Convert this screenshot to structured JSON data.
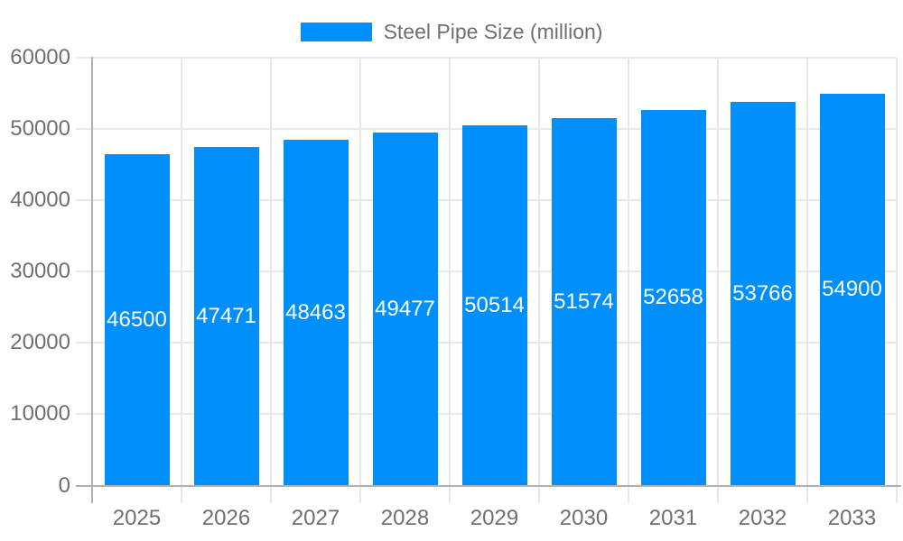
{
  "legend": {
    "label": "Steel Pipe Size (million)"
  },
  "colors": {
    "bar": "#008ffb",
    "bar_label": "#ffffff",
    "axis_text": "#6f6f6f",
    "legend_text": "#6f6f6f",
    "grid_line": "#e8e8e8",
    "axis_line": "#b0b0b0",
    "background": "#ffffff"
  },
  "chart_data": {
    "type": "bar",
    "title": "",
    "xlabel": "",
    "ylabel": "",
    "categories": [
      "2025",
      "2026",
      "2027",
      "2028",
      "2029",
      "2030",
      "2031",
      "2032",
      "2033"
    ],
    "series": [
      {
        "name": "Steel Pipe Size (million)",
        "color": "#008ffb",
        "values": [
          46500,
          47471,
          48463,
          49477,
          50514,
          51574,
          52658,
          53766,
          54900
        ]
      }
    ],
    "data_labels": [
      "46500",
      "47471",
      "48463",
      "49477",
      "50514",
      "51574",
      "52658",
      "53766",
      "54900"
    ],
    "ylim": [
      0,
      60000
    ],
    "yticks": [
      0,
      10000,
      20000,
      30000,
      40000,
      50000,
      60000
    ],
    "ytick_labels": [
      "0",
      "10000",
      "20000",
      "30000",
      "40000",
      "50000",
      "60000"
    ],
    "grid": true,
    "legend_position": "top",
    "data_label_position": "bar-center"
  }
}
